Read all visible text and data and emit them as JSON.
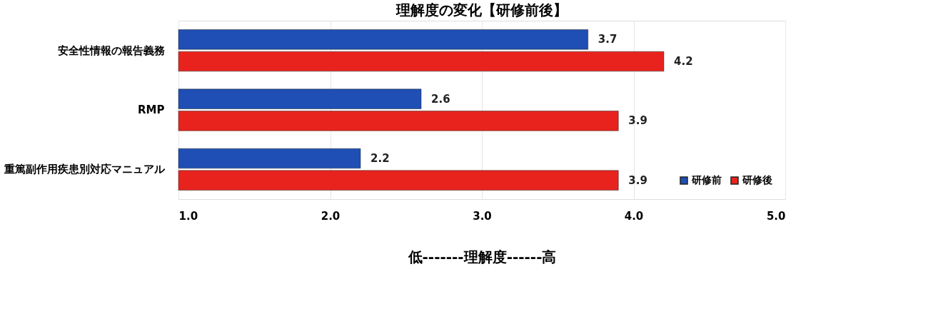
{
  "chart_data": {
    "type": "bar",
    "orientation": "horizontal",
    "title": "理解度の変化【研修前後】",
    "xlabel": "低-------理解度------高",
    "categories": [
      "安全性情報の報告義務",
      "RMP",
      "重篤副作用疾患別対応マニュアル"
    ],
    "series": [
      {
        "name": "研修前",
        "color": "#1f4fb4",
        "values": [
          3.7,
          2.6,
          2.2
        ]
      },
      {
        "name": "研修後",
        "color": "#e8231e",
        "values": [
          4.2,
          3.9,
          3.9
        ]
      }
    ],
    "xlim": [
      1,
      5
    ],
    "xticks": [
      {
        "value": 1,
        "label": "1.0"
      },
      {
        "value": 2,
        "label": "2.0"
      },
      {
        "value": 3,
        "label": "3.0"
      },
      {
        "value": 4,
        "label": "4.0"
      },
      {
        "value": 5,
        "label": "5.0"
      }
    ],
    "grid": "x",
    "legend": "bottom right",
    "data_labels": true
  }
}
